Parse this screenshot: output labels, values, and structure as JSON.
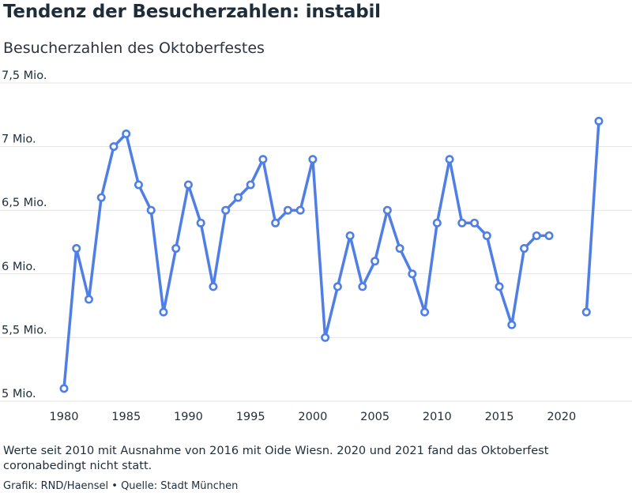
{
  "title": "Tendenz der Besucherzahlen: instabil",
  "subtitle": "Besucherzahlen des Oktoberfestes",
  "note": "Werte seit 2010 mit Ausnahme von 2016 mit Oide Wiesn. 2020 und 2021 fand das Oktoberfest coronabedingt nicht statt.",
  "credit": {
    "grafik": "Grafik: RND/Haensel",
    "separator": "•",
    "quelle": "Quelle: Stadt München"
  },
  "colors": {
    "line": "#4f7fe6",
    "grid": "#e3e3e3",
    "text": "#1f2d3a"
  },
  "chart_data": {
    "type": "line",
    "title": "Tendenz der Besucherzahlen: instabil",
    "subtitle": "Besucherzahlen des Oktoberfestes",
    "xlabel": "",
    "ylabel": "",
    "ylim": [
      5.0,
      7.5
    ],
    "xlim": [
      1980,
      2023
    ],
    "grid": true,
    "y_ticks": [
      {
        "value": 5.0,
        "label": "5 Mio."
      },
      {
        "value": 5.5,
        "label": "5,5 Mio."
      },
      {
        "value": 6.0,
        "label": "6 Mio."
      },
      {
        "value": 6.5,
        "label": "6,5 Mio."
      },
      {
        "value": 7.0,
        "label": "7 Mio."
      },
      {
        "value": 7.5,
        "label": "7,5 Mio."
      }
    ],
    "x_ticks": [
      {
        "value": 1980,
        "label": "1980"
      },
      {
        "value": 1985,
        "label": "1985"
      },
      {
        "value": 1990,
        "label": "1990"
      },
      {
        "value": 1995,
        "label": "1995"
      },
      {
        "value": 2000,
        "label": "2000"
      },
      {
        "value": 2005,
        "label": "2005"
      },
      {
        "value": 2010,
        "label": "2010"
      },
      {
        "value": 2015,
        "label": "2015"
      },
      {
        "value": 2020,
        "label": "2020"
      }
    ],
    "segments": [
      {
        "x": [
          1980,
          1981,
          1982,
          1983,
          1984,
          1985,
          1986,
          1987,
          1988,
          1989,
          1990,
          1991,
          1992,
          1993,
          1994,
          1995,
          1996,
          1997,
          1998,
          1999,
          2000,
          2001,
          2002,
          2003,
          2004,
          2005,
          2006,
          2007,
          2008,
          2009,
          2010,
          2011,
          2012,
          2013,
          2014,
          2015,
          2016,
          2017,
          2018,
          2019
        ],
        "y": [
          5.1,
          6.2,
          5.8,
          6.6,
          7.0,
          7.1,
          6.7,
          6.5,
          5.7,
          6.2,
          6.7,
          6.4,
          5.9,
          6.5,
          6.6,
          6.7,
          6.9,
          6.4,
          6.5,
          6.5,
          6.9,
          5.5,
          5.9,
          6.3,
          5.9,
          6.1,
          6.5,
          6.2,
          6.0,
          5.7,
          6.4,
          6.9,
          6.4,
          6.4,
          6.3,
          5.9,
          5.6,
          6.2,
          6.3,
          6.3
        ]
      },
      {
        "x": [
          2022,
          2023
        ],
        "y": [
          5.7,
          7.2
        ]
      }
    ]
  }
}
